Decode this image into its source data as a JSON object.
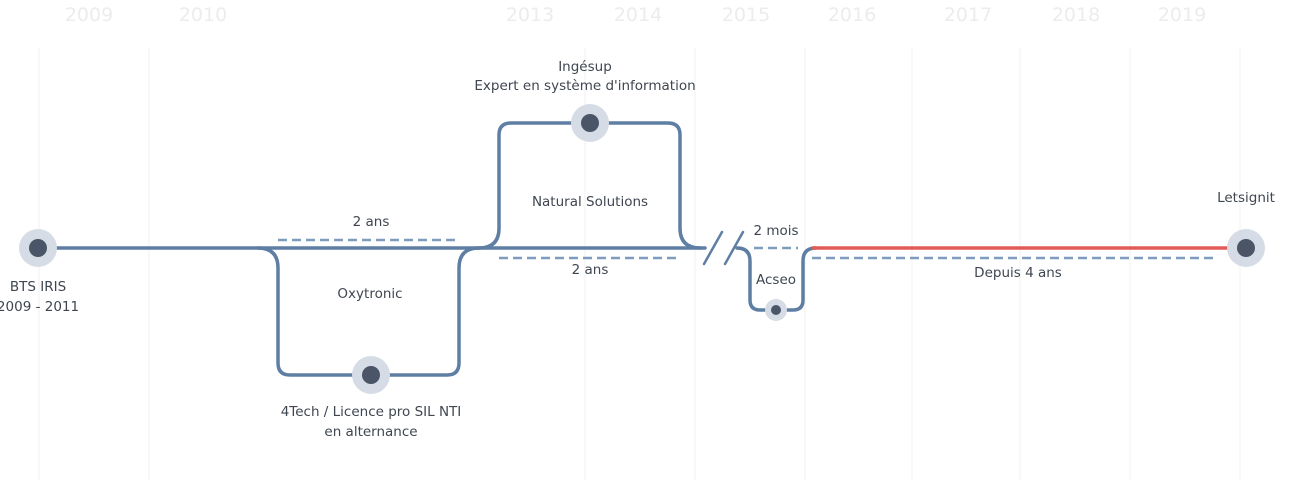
{
  "years": [
    "2009",
    "2010",
    "2013",
    "2014",
    "2015",
    "2016",
    "2017",
    "2018",
    "2019"
  ],
  "colors": {
    "path": "#5e7fa3",
    "current": "#e25b57",
    "dash": "#7f9bbd",
    "halo": "#d6dce6",
    "dot": "#4a5568",
    "year": "#ececec"
  },
  "nodes": {
    "bts": {
      "line1": "BTS IRIS",
      "line2": "2009 - 2011"
    },
    "fourtech": {
      "line1": "4Tech / Licence pro SIL NTI",
      "line2": "en alternance"
    },
    "ingesup": {
      "line1": "Ingésup",
      "line2": "Expert en système d'information"
    },
    "acseo": {
      "label": "Acseo"
    },
    "letsignit": {
      "label": "Letsignit"
    }
  },
  "companies": {
    "oxytronic": "Oxytronic",
    "natural_solutions": "Natural Solutions"
  },
  "durations": {
    "oxytronic": "2 ans",
    "natural_solutions": "2 ans",
    "acseo": "2 mois",
    "letsignit": "Depuis 4 ans"
  }
}
